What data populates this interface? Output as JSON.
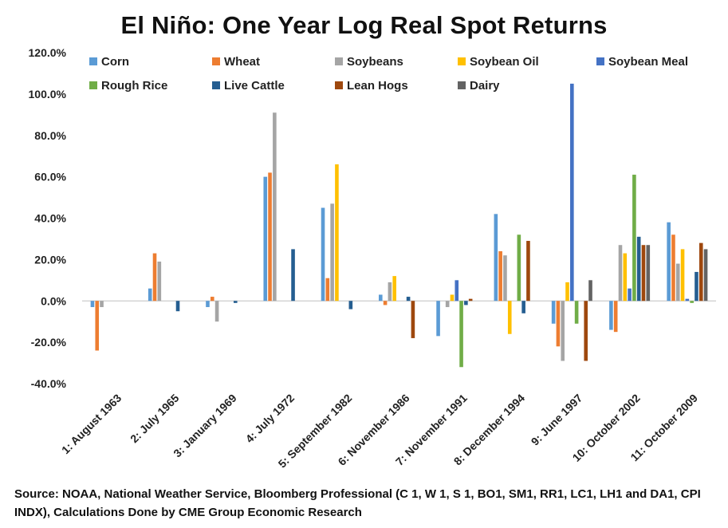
{
  "chart_data": {
    "type": "bar",
    "title": "El Niño: One Year Log Real Spot Returns",
    "xlabel": "",
    "ylabel": "",
    "ylim": [
      -40,
      120
    ],
    "yticks": [
      "120.0%",
      "100.0%",
      "80.0%",
      "60.0%",
      "40.0%",
      "20.0%",
      "0.0%",
      "-20.0%",
      "-40.0%"
    ],
    "ytick_values": [
      120,
      100,
      80,
      60,
      40,
      20,
      0,
      -20,
      -40
    ],
    "grid": false,
    "legend_position": "top",
    "categories": [
      "1: August 1963",
      "2: July 1965",
      "3: January 1969",
      "4: July 1972",
      "5: September 1982",
      "6: November 1986",
      "7: November 1991",
      "8: December 1994",
      "9: June 1997",
      "10: October 2002",
      "11: October 2009"
    ],
    "series": [
      {
        "name": "Corn",
        "color": "#5B9BD5",
        "values": [
          -3,
          6,
          -3,
          60,
          45,
          3,
          -17,
          42,
          -11,
          -14,
          38
        ]
      },
      {
        "name": "Wheat",
        "color": "#ED7D31",
        "values": [
          -24,
          23,
          2,
          62,
          11,
          -2,
          0,
          24,
          -22,
          -15,
          32
        ]
      },
      {
        "name": "Soybeans",
        "color": "#A5A5A5",
        "values": [
          -3,
          19,
          -10,
          91,
          47,
          9,
          -3,
          22,
          -29,
          27,
          18
        ]
      },
      {
        "name": "Soybean Oil",
        "color": "#FFC000",
        "values": [
          0,
          0,
          0,
          0,
          66,
          12,
          3,
          -16,
          9,
          23,
          25
        ]
      },
      {
        "name": "Soybean Meal",
        "color": "#4472C4",
        "values": [
          0,
          0,
          0,
          0,
          0,
          0,
          10,
          0,
          105,
          6,
          1
        ]
      },
      {
        "name": "Rough Rice",
        "color": "#70AD47",
        "values": [
          0,
          0,
          0,
          0,
          0,
          0,
          -32,
          32,
          -11,
          61,
          -1
        ]
      },
      {
        "name": "Live Cattle",
        "color": "#255E91",
        "values": [
          0,
          -5,
          -1,
          25,
          -4,
          2,
          -2,
          -6,
          0,
          31,
          14
        ]
      },
      {
        "name": "Lean Hogs",
        "color": "#9E480E",
        "values": [
          0,
          0,
          0,
          0,
          0,
          -18,
          1,
          29,
          -29,
          27,
          28
        ]
      },
      {
        "name": "Dairy",
        "color": "#636363",
        "values": [
          0,
          0,
          0,
          0,
          0,
          0,
          0,
          0,
          10,
          27,
          25
        ]
      }
    ]
  },
  "source": "Source: NOAA, National Weather Service, Bloomberg Professional (C 1, W 1, S 1, BO1, SM1, RR1, LC1, LH1 and DA1, CPI INDX), Calculations Done by CME Group Economic Research"
}
